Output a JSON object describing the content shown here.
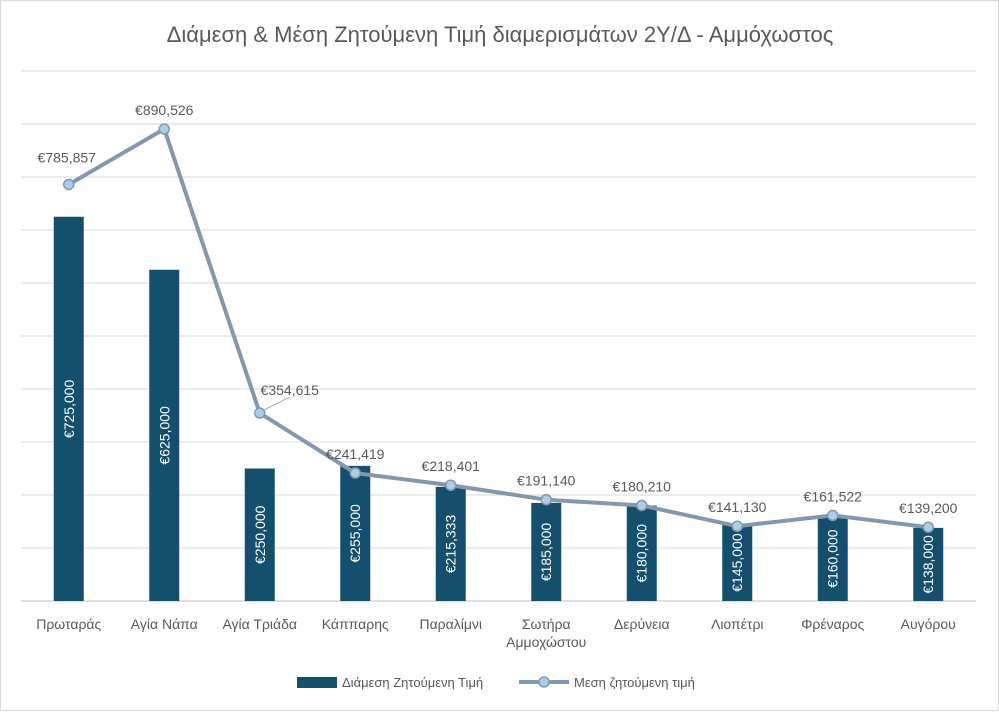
{
  "chart_data": {
    "type": "bar",
    "title": "Διάμεση & Μέση Ζητούμενη Τιμή διαμερισμάτων 2Υ/Δ - Αμμόχωστος",
    "xlabel": "",
    "ylabel": "",
    "ylim": [
      0,
      1000000
    ],
    "grid": true,
    "legend": "bottom",
    "categories": [
      [
        "Πρωταράς"
      ],
      [
        "Αγία Νάπα"
      ],
      [
        "Αγία Τριάδα"
      ],
      [
        "Κάππαρης"
      ],
      [
        "Παραλίμνι"
      ],
      [
        "Σωτήρα",
        "Αμμοχώστου"
      ],
      [
        "Δερύνεια"
      ],
      [
        "Λιοπέτρι"
      ],
      [
        "Φρέναρος"
      ],
      [
        "Αυγόρου"
      ]
    ],
    "series": [
      {
        "name": "Διάμεση Ζητούμενη Τιμή",
        "type": "bar",
        "color": "#14506e",
        "values": [
          725000,
          625000,
          250000,
          255000,
          215333,
          185000,
          180000,
          145000,
          160000,
          138000
        ],
        "labels": [
          "€725,000",
          "€625,000",
          "€250,000",
          "€255,000",
          "€215,333",
          "€185,000",
          "€180,000",
          "€145,000",
          "€160,000",
          "€138,000"
        ]
      },
      {
        "name": "Μεση ζητούμενη τιμή",
        "type": "line",
        "color": "#8497b0",
        "marker_color": "#a9cfe8",
        "values": [
          785857,
          890526,
          354615,
          241419,
          218401,
          191140,
          180210,
          141130,
          161522,
          139200
        ],
        "labels": [
          "€785,857",
          "€890,526",
          "€354,615",
          "€241,419",
          "€218,401",
          "€191,140",
          "€180,210",
          "€141,130",
          "€161,522",
          "€139,200"
        ]
      }
    ]
  }
}
